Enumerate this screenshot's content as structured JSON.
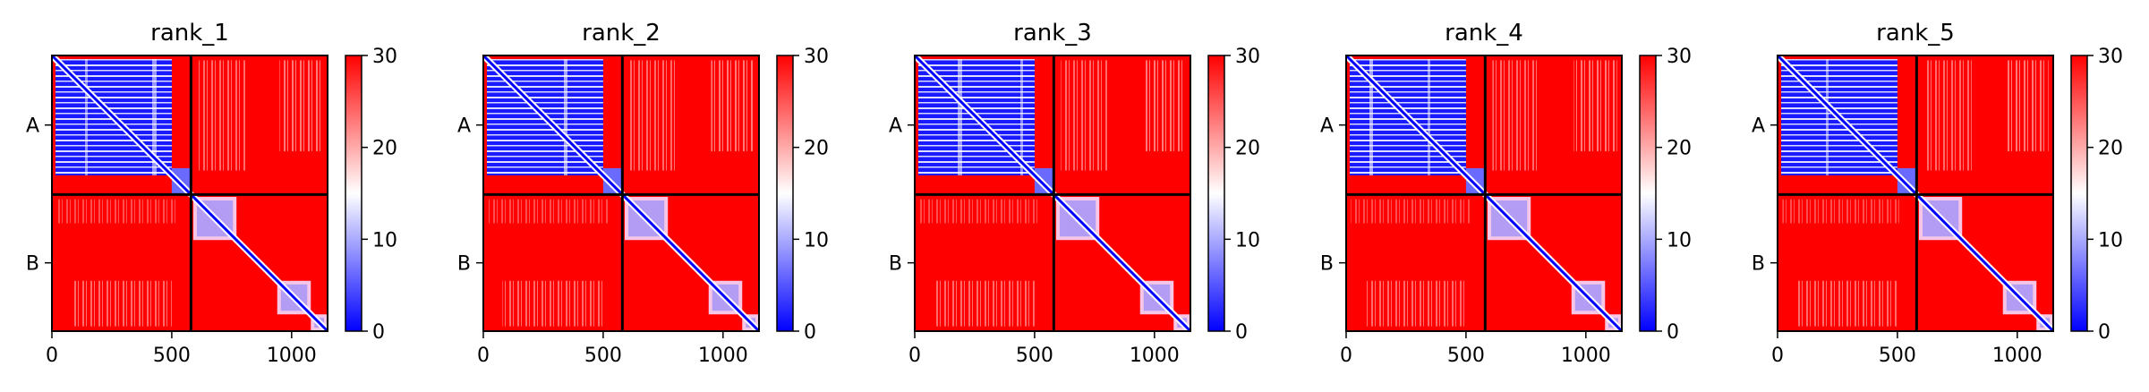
{
  "chart_data": [
    {
      "type": "heatmap",
      "title": "rank_1",
      "matrix_size": 1150,
      "chain_labels": [
        "A",
        "B"
      ],
      "chain_boundary": 580,
      "x_ticks": [
        0,
        500,
        1000
      ],
      "xlim": [
        0,
        1150
      ],
      "colorbar": {
        "min": 0,
        "max": 30,
        "ticks": [
          0,
          10,
          20,
          30
        ],
        "colormap": "bwr"
      }
    },
    {
      "type": "heatmap",
      "title": "rank_2",
      "matrix_size": 1150,
      "chain_labels": [
        "A",
        "B"
      ],
      "chain_boundary": 580,
      "x_ticks": [
        0,
        500,
        1000
      ],
      "xlim": [
        0,
        1150
      ],
      "colorbar": {
        "min": 0,
        "max": 30,
        "ticks": [
          0,
          10,
          20,
          30
        ],
        "colormap": "bwr"
      }
    },
    {
      "type": "heatmap",
      "title": "rank_3",
      "matrix_size": 1150,
      "chain_labels": [
        "A",
        "B"
      ],
      "chain_boundary": 580,
      "x_ticks": [
        0,
        500,
        1000
      ],
      "xlim": [
        0,
        1150
      ],
      "colorbar": {
        "min": 0,
        "max": 30,
        "ticks": [
          0,
          10,
          20,
          30
        ],
        "colormap": "bwr"
      }
    },
    {
      "type": "heatmap",
      "title": "rank_4",
      "matrix_size": 1150,
      "chain_labels": [
        "A",
        "B"
      ],
      "chain_boundary": 580,
      "x_ticks": [
        0,
        500,
        1000
      ],
      "xlim": [
        0,
        1150
      ],
      "colorbar": {
        "min": 0,
        "max": 30,
        "ticks": [
          0,
          10,
          20,
          30
        ],
        "colormap": "bwr"
      }
    },
    {
      "type": "heatmap",
      "title": "rank_5",
      "matrix_size": 1150,
      "chain_labels": [
        "A",
        "B"
      ],
      "chain_boundary": 580,
      "x_ticks": [
        0,
        500,
        1000
      ],
      "xlim": [
        0,
        1150
      ],
      "colorbar": {
        "min": 0,
        "max": 30,
        "ticks": [
          0,
          10,
          20,
          30
        ],
        "colormap": "bwr"
      }
    }
  ],
  "colors": {
    "low": "#0000ff",
    "mid": "#ffffff",
    "high": "#ff0000",
    "boundary": "#000000"
  }
}
